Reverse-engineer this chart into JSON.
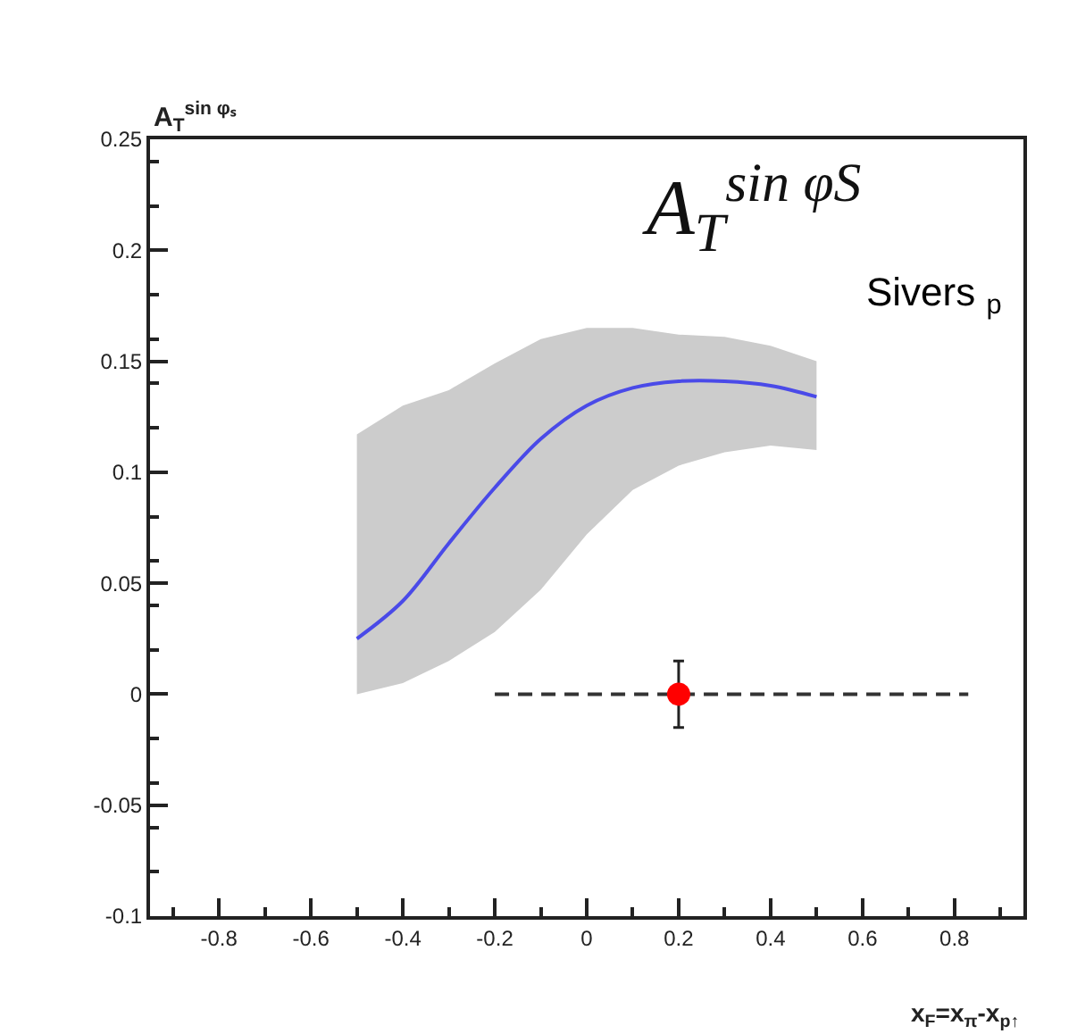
{
  "chart_data": {
    "type": "line",
    "title": "A$_{T}$$^{sin φS}$",
    "xlabel": "x$_{F}$=x$_{π}$-x$_{p↑}$",
    "ylabel": "A$_{T}$$^{sin φₛ}$",
    "annotations": [
      "Sivers $_{p}$"
    ],
    "xlim": [
      -0.95,
      0.95
    ],
    "xticks": [
      -0.8,
      -0.6,
      -0.4,
      -0.2,
      0,
      0.2,
      0.4,
      0.6,
      0.8
    ],
    "ylim": [
      -0.1,
      0.25
    ],
    "yticks": [
      -0.1,
      -0.05,
      0,
      0.05,
      0.1,
      0.15,
      0.2,
      0.25
    ],
    "series": [
      {
        "color": "#4a4ae8",
        "line_style": "solid",
        "x": [
          -0.5,
          -0.4,
          -0.3,
          -0.2,
          -0.1,
          0,
          0.1,
          0.2,
          0.3,
          0.4,
          0.5
        ],
        "values": [
          0.025,
          0.042,
          0.068,
          0.093,
          0.115,
          0.13,
          0.138,
          0.141,
          0.141,
          0.139,
          0.134
        ],
        "lower": [
          0.0,
          0.005,
          0.015,
          0.028,
          0.047,
          0.072,
          0.092,
          0.103,
          0.109,
          0.112,
          0.11
        ],
        "upper": [
          0.117,
          0.13,
          0.137,
          0.149,
          0.16,
          0.165,
          0.165,
          0.162,
          0.161,
          0.157,
          0.15
        ]
      },
      {
        "color": "#333333",
        "line_style": "dashed",
        "x": [
          -0.2,
          0.83
        ],
        "values": [
          0,
          0
        ]
      },
      {
        "type": "scatter",
        "color": "#ff0000",
        "marker": "circle",
        "x": [
          0.2
        ],
        "values": [
          0
        ],
        "errors": [
          0.015
        ]
      }
    ]
  }
}
